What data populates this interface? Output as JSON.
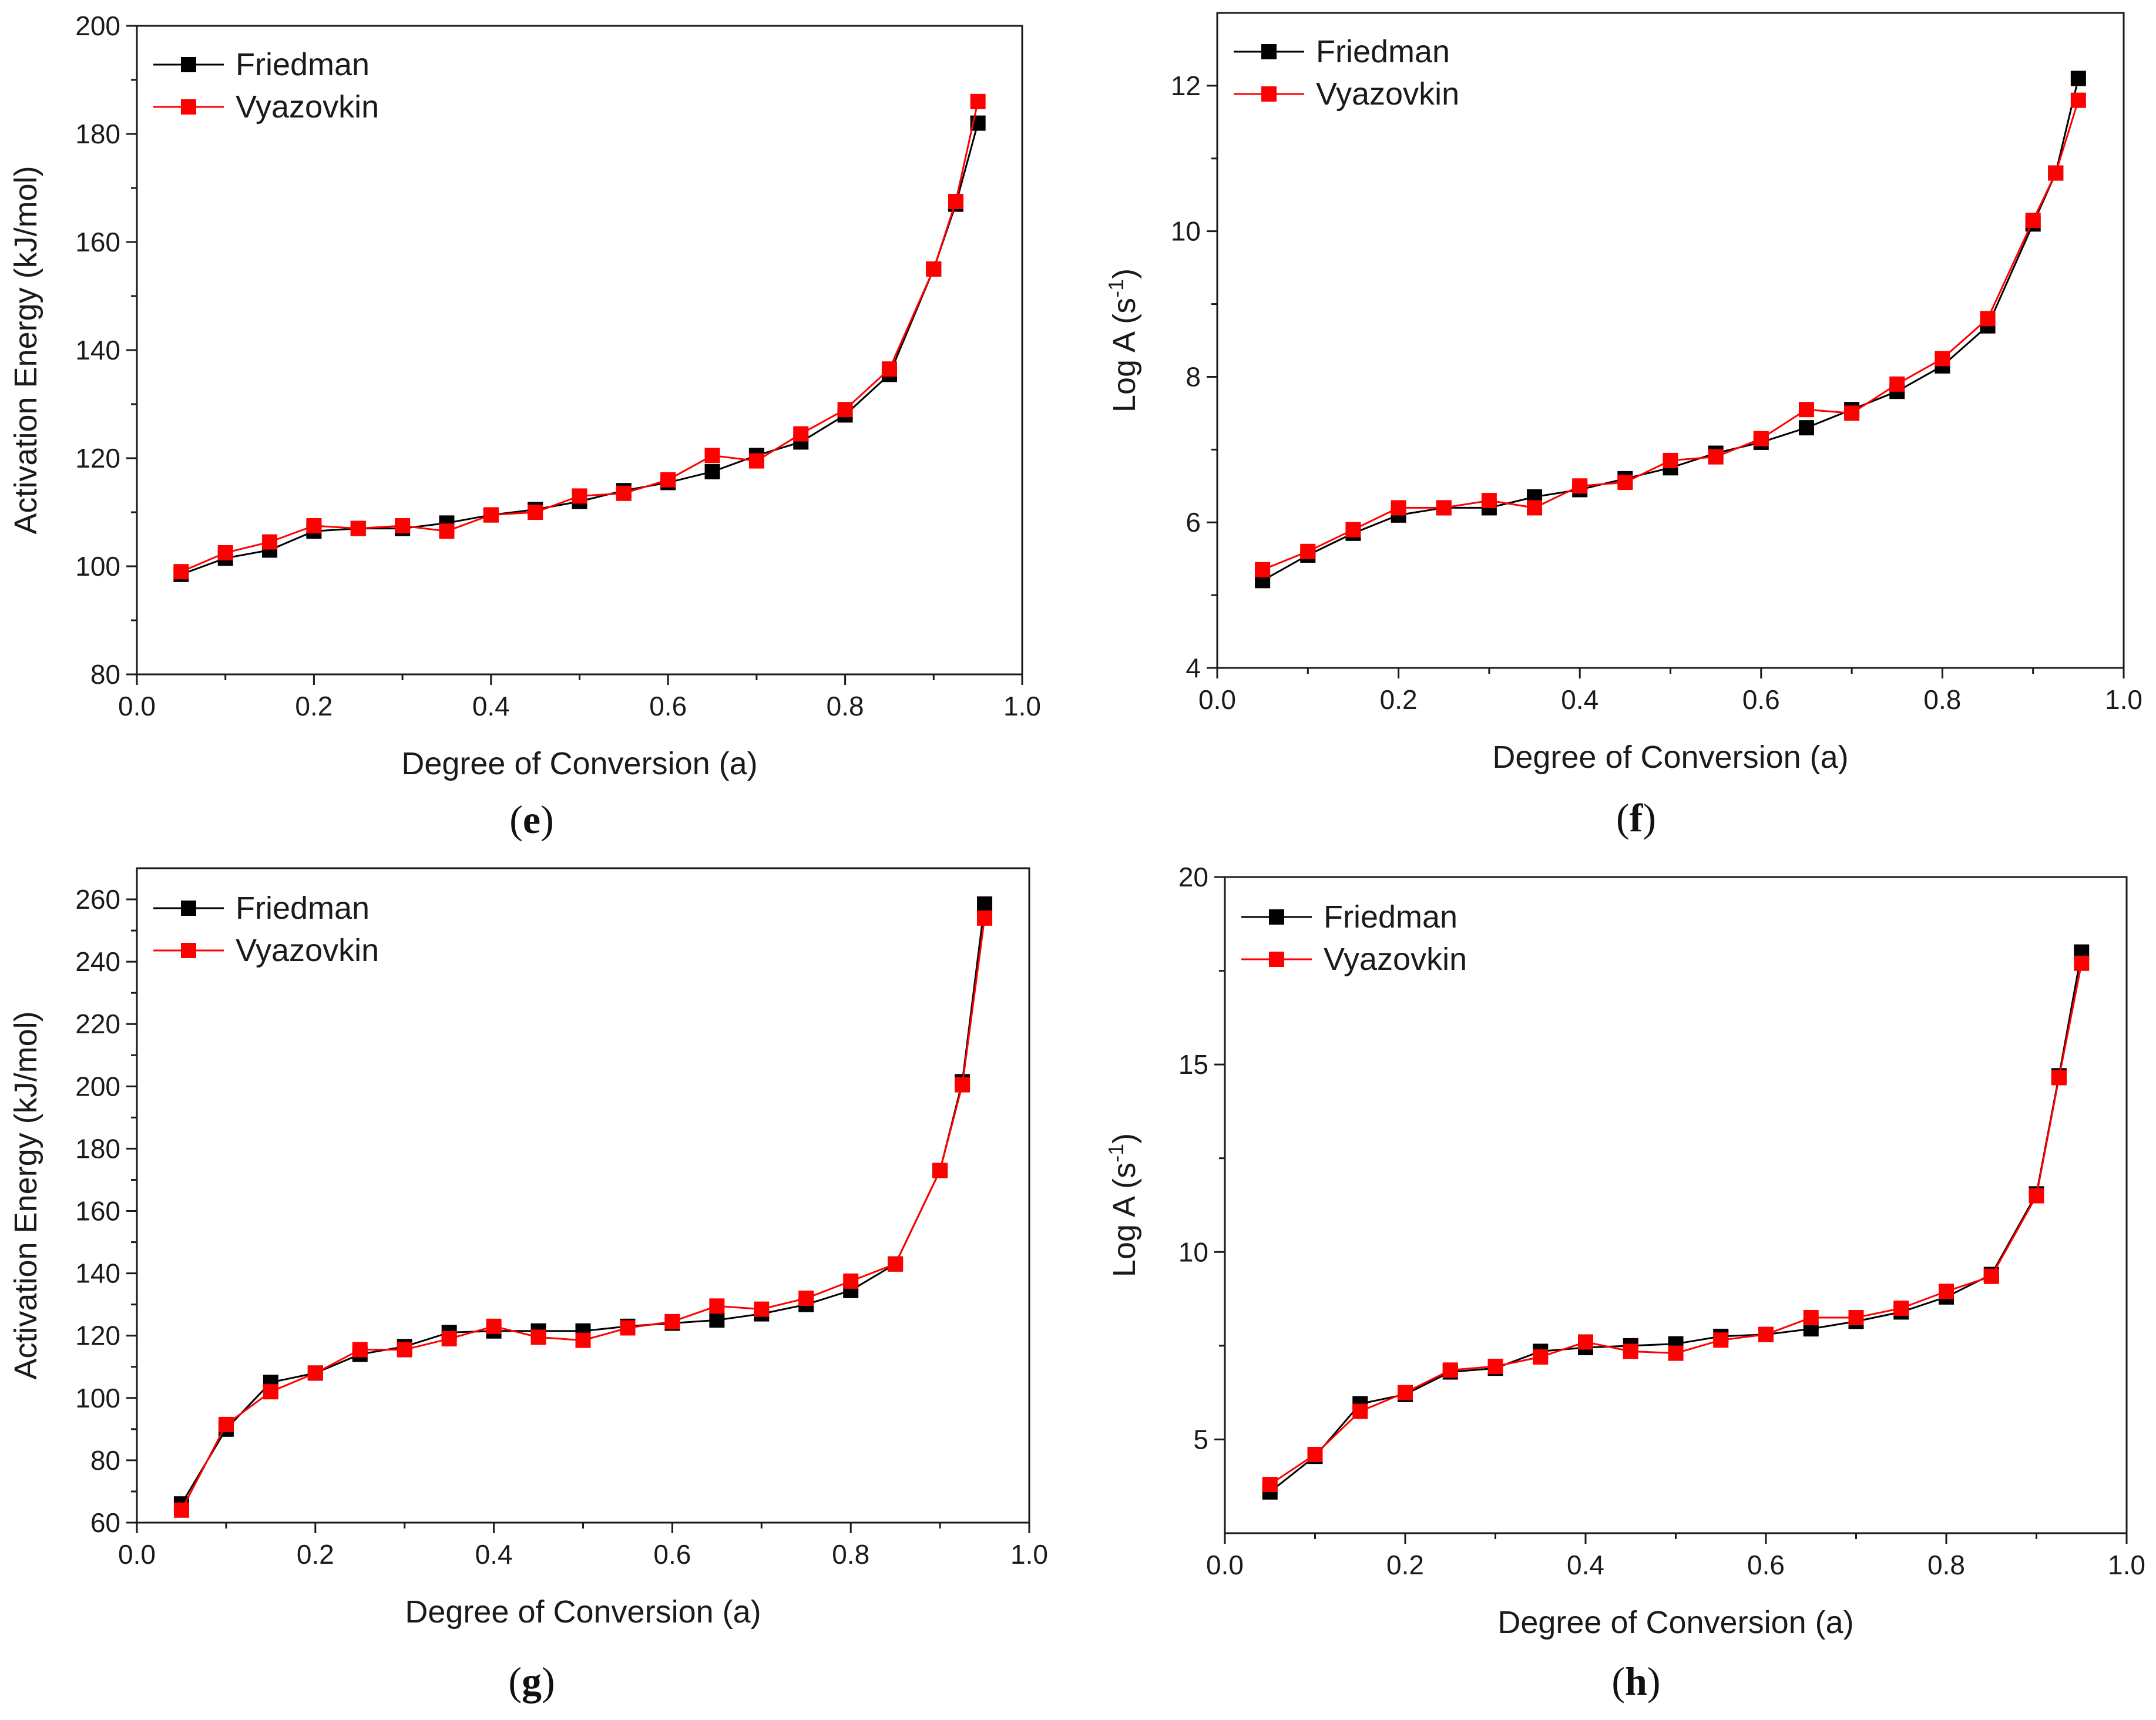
{
  "chart_data": [
    {
      "type": "line",
      "panel_label": "(e)",
      "panel_letter": "e",
      "xlabel": "Degree of Conversion (a)",
      "ylabel": "Activation Energy (kJ/mol)",
      "ylabel_parts": [
        "Activation Energy (kJ/mol)"
      ],
      "xlim": [
        0.0,
        1.0
      ],
      "ylim": [
        80,
        200
      ],
      "xticks": [
        0.0,
        0.2,
        0.4,
        0.6,
        0.8,
        1.0
      ],
      "xtick_labels": [
        "0.0",
        "0.2",
        "0.4",
        "0.6",
        "0.8",
        "1.0"
      ],
      "yticks": [
        80,
        100,
        120,
        140,
        160,
        180,
        200
      ],
      "ytick_labels": [
        "80",
        "100",
        "120",
        "140",
        "160",
        "180",
        "200"
      ],
      "legend": "top-left",
      "x": [
        0.05,
        0.1,
        0.15,
        0.2,
        0.25,
        0.3,
        0.35,
        0.4,
        0.45,
        0.5,
        0.55,
        0.6,
        0.65,
        0.7,
        0.75,
        0.8,
        0.85,
        0.9,
        0.925,
        0.95
      ],
      "series": [
        {
          "name": "Friedman",
          "color": "#000000",
          "values": [
            98.5,
            101.5,
            103,
            106.5,
            107,
            107,
            108,
            109.5,
            110.5,
            112,
            114,
            115.5,
            117.5,
            120.5,
            123,
            128,
            135.5,
            155,
            167,
            182
          ]
        },
        {
          "name": "Vyazovkin",
          "color": "#ff0000",
          "values": [
            99,
            102.5,
            104.5,
            107.5,
            107,
            107.5,
            106.5,
            109.5,
            110,
            113,
            113.5,
            116,
            120.5,
            119.5,
            124.5,
            129,
            136.5,
            155,
            167.5,
            186
          ]
        }
      ]
    },
    {
      "type": "line",
      "panel_label": "(f)",
      "panel_letter": "f",
      "xlabel": "Degree of Conversion (a)",
      "ylabel": "Log A (s-1)",
      "ylabel_parts": [
        "Log A (s",
        "-1",
        ")"
      ],
      "xlim": [
        0.0,
        1.0
      ],
      "ylim": [
        4,
        13
      ],
      "xticks": [
        0.0,
        0.2,
        0.4,
        0.6,
        0.8,
        1.0
      ],
      "xtick_labels": [
        "0.0",
        "0.2",
        "0.4",
        "0.6",
        "0.8",
        "1.0"
      ],
      "yticks": [
        4,
        6,
        8,
        10,
        12
      ],
      "ytick_labels": [
        "4",
        "6",
        "8",
        "10",
        "12"
      ],
      "legend": "top-left",
      "x": [
        0.05,
        0.1,
        0.15,
        0.2,
        0.25,
        0.3,
        0.35,
        0.4,
        0.45,
        0.5,
        0.55,
        0.6,
        0.65,
        0.7,
        0.75,
        0.8,
        0.85,
        0.9,
        0.925,
        0.95
      ],
      "series": [
        {
          "name": "Friedman",
          "color": "#000000",
          "values": [
            5.2,
            5.55,
            5.85,
            6.1,
            6.2,
            6.2,
            6.35,
            6.45,
            6.6,
            6.75,
            6.95,
            7.1,
            7.3,
            7.55,
            7.8,
            8.15,
            8.7,
            10.1,
            10.8,
            12.1
          ]
        },
        {
          "name": "Vyazovkin",
          "color": "#ff0000",
          "values": [
            5.35,
            5.6,
            5.9,
            6.2,
            6.2,
            6.3,
            6.2,
            6.5,
            6.55,
            6.85,
            6.9,
            7.15,
            7.55,
            7.5,
            7.9,
            8.25,
            8.8,
            10.15,
            10.8,
            11.8
          ]
        }
      ]
    },
    {
      "type": "line",
      "panel_label": "(g)",
      "panel_letter": "g",
      "xlabel": "Degree of Conversion (a)",
      "ylabel": "Activation Energy (kJ/mol)",
      "ylabel_parts": [
        "Activation Energy (kJ/mol)"
      ],
      "xlim": [
        0.0,
        1.0
      ],
      "ylim": [
        60,
        270
      ],
      "xticks": [
        0.0,
        0.2,
        0.4,
        0.6,
        0.8,
        1.0
      ],
      "xtick_labels": [
        "0.0",
        "0.2",
        "0.4",
        "0.6",
        "0.8",
        "1.0"
      ],
      "yticks": [
        60,
        80,
        100,
        120,
        140,
        160,
        180,
        200,
        220,
        240,
        260
      ],
      "ytick_labels": [
        "60",
        "80",
        "100",
        "120",
        "140",
        "160",
        "180",
        "200",
        "220",
        "240",
        "260"
      ],
      "legend": "top-left",
      "x": [
        0.05,
        0.1,
        0.15,
        0.2,
        0.25,
        0.3,
        0.35,
        0.4,
        0.45,
        0.5,
        0.55,
        0.6,
        0.65,
        0.7,
        0.75,
        0.8,
        0.85,
        0.9,
        0.925,
        0.95
      ],
      "series": [
        {
          "name": "Friedman",
          "color": "#000000",
          "values": [
            66,
            90,
            105,
            108,
            114,
            116.5,
            121,
            121.5,
            121.5,
            121.5,
            123,
            124,
            125,
            127,
            130,
            134.5,
            143,
            173,
            201.5,
            258.5
          ]
        },
        {
          "name": "Vyazovkin",
          "color": "#ff0000",
          "values": [
            64,
            91.5,
            102,
            108,
            115.5,
            115.5,
            119,
            123,
            119.5,
            118.5,
            122.5,
            124.5,
            129.5,
            128.5,
            132,
            137.5,
            143,
            173,
            200.5,
            254
          ]
        }
      ]
    },
    {
      "type": "line",
      "panel_label": "(h)",
      "panel_letter": "h",
      "xlabel": "Degree of Conversion (a)",
      "ylabel": "Log A (s-1)",
      "ylabel_parts": [
        "Log A (s",
        "-1",
        ")"
      ],
      "xlim": [
        0.0,
        1.0
      ],
      "ylim": [
        2.5,
        20
      ],
      "xticks": [
        0.0,
        0.2,
        0.4,
        0.6,
        0.8,
        1.0
      ],
      "xtick_labels": [
        "0.0",
        "0.2",
        "0.4",
        "0.6",
        "0.8",
        "1.0"
      ],
      "yticks": [
        5,
        10,
        15,
        20
      ],
      "ytick_labels": [
        "5",
        "10",
        "15",
        "20"
      ],
      "legend": "top-left",
      "x": [
        0.05,
        0.1,
        0.15,
        0.2,
        0.25,
        0.3,
        0.35,
        0.4,
        0.45,
        0.5,
        0.55,
        0.6,
        0.65,
        0.7,
        0.75,
        0.8,
        0.85,
        0.9,
        0.925,
        0.95
      ],
      "series": [
        {
          "name": "Friedman",
          "color": "#000000",
          "values": [
            3.6,
            4.55,
            5.95,
            6.2,
            6.8,
            6.9,
            7.35,
            7.45,
            7.5,
            7.55,
            7.75,
            7.8,
            7.95,
            8.15,
            8.4,
            8.8,
            9.4,
            11.55,
            14.7,
            18.0
          ]
        },
        {
          "name": "Vyazovkin",
          "color": "#ff0000",
          "values": [
            3.8,
            4.6,
            5.75,
            6.25,
            6.85,
            6.95,
            7.2,
            7.6,
            7.35,
            7.3,
            7.65,
            7.8,
            8.25,
            8.25,
            8.5,
            8.95,
            9.35,
            11.5,
            14.65,
            17.7
          ]
        }
      ]
    }
  ]
}
